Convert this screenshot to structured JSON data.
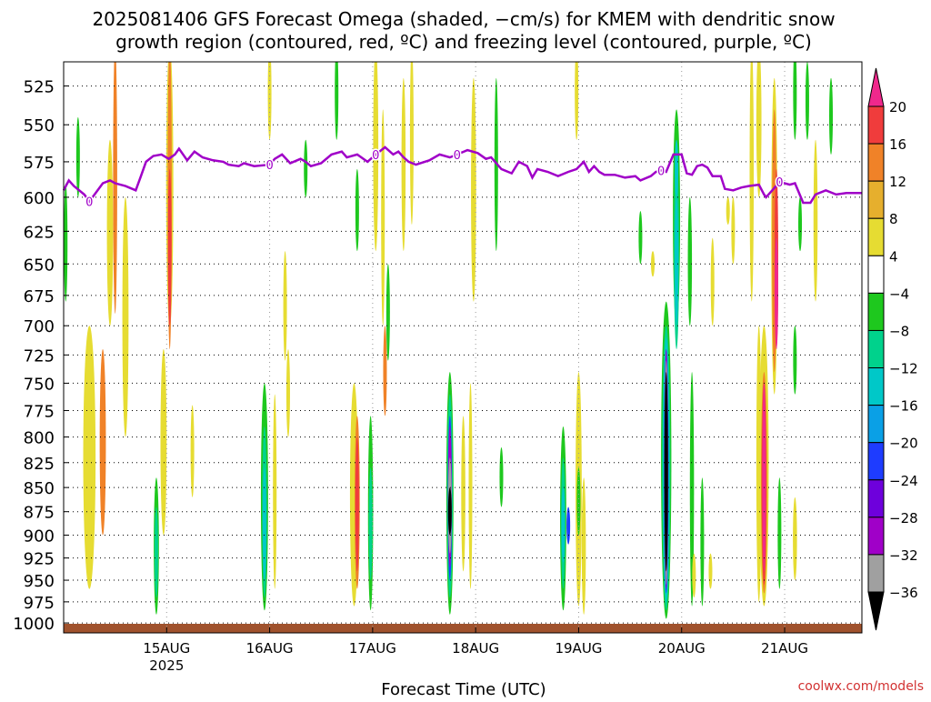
{
  "chart_data": {
    "type": "heatmap",
    "title_line1": "2025081406 GFS Forecast Omega (shaded, −cm/s) for KMEM with dendritic snow",
    "title_line2": "growth region (contoured, red, ºC) and freezing level (contoured, purple, ºC)",
    "xlabel": "Forecast Time (UTC)",
    "watermark": "coolwx.com/models",
    "x_ticks": [
      {
        "label": "15AUG",
        "sub": "2025",
        "day": 15
      },
      {
        "label": "16AUG",
        "sub": "",
        "day": 16
      },
      {
        "label": "17AUG",
        "sub": "",
        "day": 17
      },
      {
        "label": "18AUG",
        "sub": "",
        "day": 18
      },
      {
        "label": "19AUG",
        "sub": "",
        "day": 19
      },
      {
        "label": "20AUG",
        "sub": "",
        "day": 20
      },
      {
        "label": "21AUG",
        "sub": "",
        "day": 21
      }
    ],
    "x_range_days": [
      14.0,
      21.75
    ],
    "y_ticks": [
      525,
      550,
      575,
      600,
      625,
      650,
      675,
      700,
      725,
      750,
      775,
      800,
      825,
      850,
      875,
      900,
      925,
      950,
      975,
      1000
    ],
    "y_range_hpa": [
      510,
      1012
    ],
    "y_scale": "log-pressure",
    "grid": true,
    "colorbar": {
      "labels": [
        "20",
        "16",
        "12",
        "8",
        "4",
        "−4",
        "−8",
        "−12",
        "−16",
        "−20",
        "−24",
        "−28",
        "−32",
        "−36"
      ],
      "colors": [
        "#f0288c",
        "#f03c3c",
        "#f08228",
        "#e6af2d",
        "#e6dc32",
        "#ffffff",
        "#1ec81e",
        "#00d28c",
        "#00c8c8",
        "#0aa0e6",
        "#1e3cff",
        "#6e00dc",
        "#a000c8",
        "#a0a0a0",
        "#000000"
      ]
    },
    "omega_blobs": [
      {
        "day": 14.02,
        "p_top": 590,
        "p_bot": 680,
        "w": 0.03,
        "level": "green"
      },
      {
        "day": 14.14,
        "p_top": 545,
        "p_bot": 600,
        "w": 0.03,
        "level": "green"
      },
      {
        "day": 14.5,
        "p_top": 500,
        "p_bot": 690,
        "w": 0.04,
        "level": "orange"
      },
      {
        "day": 14.45,
        "p_top": 560,
        "p_bot": 700,
        "w": 0.06,
        "level": "yellow"
      },
      {
        "day": 14.25,
        "p_top": 700,
        "p_bot": 960,
        "w": 0.12,
        "level": "yellow"
      },
      {
        "day": 14.38,
        "p_top": 720,
        "p_bot": 900,
        "w": 0.06,
        "level": "orange"
      },
      {
        "day": 14.6,
        "p_top": 600,
        "p_bot": 800,
        "w": 0.06,
        "level": "yellow"
      },
      {
        "day": 15.03,
        "p_top": 500,
        "p_bot": 700,
        "w": 0.07,
        "level": "yellow"
      },
      {
        "day": 15.03,
        "p_top": 500,
        "p_bot": 720,
        "w": 0.04,
        "level": "orange"
      },
      {
        "day": 15.03,
        "p_top": 580,
        "p_bot": 700,
        "w": 0.02,
        "level": "red"
      },
      {
        "day": 14.97,
        "p_top": 720,
        "p_bot": 900,
        "w": 0.06,
        "level": "yellow"
      },
      {
        "day": 14.9,
        "p_top": 840,
        "p_bot": 990,
        "w": 0.05,
        "level": "green"
      },
      {
        "day": 14.9,
        "p_top": 870,
        "p_bot": 970,
        "w": 0.025,
        "level": "teal"
      },
      {
        "day": 15.25,
        "p_top": 770,
        "p_bot": 860,
        "w": 0.03,
        "level": "yellow"
      },
      {
        "day": 16.0,
        "p_top": 500,
        "p_bot": 560,
        "w": 0.025,
        "level": "yellow"
      },
      {
        "day": 15.95,
        "p_top": 750,
        "p_bot": 985,
        "w": 0.07,
        "level": "green"
      },
      {
        "day": 15.95,
        "p_top": 790,
        "p_bot": 970,
        "w": 0.045,
        "level": "teal"
      },
      {
        "day": 15.95,
        "p_top": 830,
        "p_bot": 950,
        "w": 0.025,
        "level": "cyan"
      },
      {
        "day": 16.05,
        "p_top": 760,
        "p_bot": 960,
        "w": 0.03,
        "level": "yellow"
      },
      {
        "day": 16.15,
        "p_top": 640,
        "p_bot": 730,
        "w": 0.03,
        "level": "yellow"
      },
      {
        "day": 16.18,
        "p_top": 720,
        "p_bot": 800,
        "w": 0.02,
        "level": "yellow"
      },
      {
        "day": 16.35,
        "p_top": 560,
        "p_bot": 600,
        "w": 0.03,
        "level": "green"
      },
      {
        "day": 16.65,
        "p_top": 500,
        "p_bot": 560,
        "w": 0.02,
        "level": "green"
      },
      {
        "day": 16.85,
        "p_top": 580,
        "p_bot": 640,
        "w": 0.025,
        "level": "green"
      },
      {
        "day": 16.82,
        "p_top": 750,
        "p_bot": 980,
        "w": 0.08,
        "level": "yellow"
      },
      {
        "day": 16.85,
        "p_top": 780,
        "p_bot": 960,
        "w": 0.05,
        "level": "orange"
      },
      {
        "day": 16.85,
        "p_top": 800,
        "p_bot": 940,
        "w": 0.025,
        "level": "red"
      },
      {
        "day": 16.98,
        "p_top": 780,
        "p_bot": 985,
        "w": 0.05,
        "level": "green"
      },
      {
        "day": 16.98,
        "p_top": 830,
        "p_bot": 950,
        "w": 0.025,
        "level": "teal"
      },
      {
        "day": 17.03,
        "p_top": 500,
        "p_bot": 640,
        "w": 0.05,
        "level": "yellow"
      },
      {
        "day": 17.1,
        "p_top": 540,
        "p_bot": 700,
        "w": 0.03,
        "level": "yellow"
      },
      {
        "day": 17.12,
        "p_top": 700,
        "p_bot": 780,
        "w": 0.025,
        "level": "orange"
      },
      {
        "day": 17.15,
        "p_top": 650,
        "p_bot": 730,
        "w": 0.03,
        "level": "green"
      },
      {
        "day": 17.3,
        "p_top": 520,
        "p_bot": 640,
        "w": 0.04,
        "level": "yellow"
      },
      {
        "day": 17.38,
        "p_top": 500,
        "p_bot": 620,
        "w": 0.03,
        "level": "yellow"
      },
      {
        "day": 17.75,
        "p_top": 740,
        "p_bot": 990,
        "w": 0.07,
        "level": "green"
      },
      {
        "day": 17.75,
        "p_top": 760,
        "p_bot": 970,
        "w": 0.055,
        "level": "teal"
      },
      {
        "day": 17.75,
        "p_top": 780,
        "p_bot": 950,
        "w": 0.04,
        "level": "blue"
      },
      {
        "day": 17.75,
        "p_top": 790,
        "p_bot": 935,
        "w": 0.03,
        "level": "purple"
      },
      {
        "day": 17.75,
        "p_top": 820,
        "p_bot": 920,
        "w": 0.018,
        "level": "grey"
      },
      {
        "day": 17.75,
        "p_top": 850,
        "p_bot": 900,
        "w": 0.008,
        "level": "black"
      },
      {
        "day": 17.88,
        "p_top": 780,
        "p_bot": 940,
        "w": 0.04,
        "level": "yellow"
      },
      {
        "day": 17.95,
        "p_top": 750,
        "p_bot": 960,
        "w": 0.03,
        "level": "yellow"
      },
      {
        "day": 17.98,
        "p_top": 520,
        "p_bot": 680,
        "w": 0.05,
        "level": "yellow"
      },
      {
        "day": 18.2,
        "p_top": 520,
        "p_bot": 640,
        "w": 0.03,
        "level": "green"
      },
      {
        "day": 18.25,
        "p_top": 810,
        "p_bot": 870,
        "w": 0.02,
        "level": "green"
      },
      {
        "day": 18.85,
        "p_top": 790,
        "p_bot": 985,
        "w": 0.06,
        "level": "green"
      },
      {
        "day": 18.85,
        "p_top": 820,
        "p_bot": 960,
        "w": 0.04,
        "level": "teal"
      },
      {
        "day": 18.85,
        "p_top": 850,
        "p_bot": 930,
        "w": 0.02,
        "level": "cyan"
      },
      {
        "day": 18.9,
        "p_top": 870,
        "p_bot": 910,
        "w": 0.01,
        "level": "blue"
      },
      {
        "day": 19.0,
        "p_top": 740,
        "p_bot": 980,
        "w": 0.06,
        "level": "yellow"
      },
      {
        "day": 19.05,
        "p_top": 840,
        "p_bot": 990,
        "w": 0.04,
        "level": "yellow"
      },
      {
        "day": 18.98,
        "p_top": 500,
        "p_bot": 560,
        "w": 0.02,
        "level": "yellow"
      },
      {
        "day": 19.0,
        "p_top": 830,
        "p_bot": 900,
        "w": 0.02,
        "level": "green"
      },
      {
        "day": 19.6,
        "p_top": 610,
        "p_bot": 650,
        "w": 0.025,
        "level": "green"
      },
      {
        "day": 19.72,
        "p_top": 640,
        "p_bot": 660,
        "w": 0.03,
        "level": "yellow"
      },
      {
        "day": 19.85,
        "p_top": 680,
        "p_bot": 995,
        "w": 0.1,
        "level": "green"
      },
      {
        "day": 19.85,
        "p_top": 700,
        "p_bot": 985,
        "w": 0.08,
        "level": "teal"
      },
      {
        "day": 19.85,
        "p_top": 710,
        "p_bot": 975,
        "w": 0.06,
        "level": "cyan"
      },
      {
        "day": 19.85,
        "p_top": 720,
        "p_bot": 965,
        "w": 0.045,
        "level": "blue"
      },
      {
        "day": 19.85,
        "p_top": 720,
        "p_bot": 960,
        "w": 0.035,
        "level": "purple"
      },
      {
        "day": 19.85,
        "p_top": 730,
        "p_bot": 955,
        "w": 0.025,
        "level": "grey"
      },
      {
        "day": 19.85,
        "p_top": 740,
        "p_bot": 940,
        "w": 0.02,
        "level": "black"
      },
      {
        "day": 19.95,
        "p_top": 540,
        "p_bot": 700,
        "w": 0.07,
        "level": "green"
      },
      {
        "day": 19.95,
        "p_top": 570,
        "p_bot": 720,
        "w": 0.05,
        "level": "teal"
      },
      {
        "day": 19.95,
        "p_top": 600,
        "p_bot": 700,
        "w": 0.025,
        "level": "cyan"
      },
      {
        "day": 19.95,
        "p_top": 560,
        "p_bot": 600,
        "w": 0.025,
        "level": "cyan"
      },
      {
        "day": 20.08,
        "p_top": 600,
        "p_bot": 700,
        "w": 0.04,
        "level": "green"
      },
      {
        "day": 20.1,
        "p_top": 740,
        "p_bot": 980,
        "w": 0.04,
        "level": "green"
      },
      {
        "day": 20.2,
        "p_top": 840,
        "p_bot": 980,
        "w": 0.035,
        "level": "green"
      },
      {
        "day": 20.12,
        "p_top": 920,
        "p_bot": 970,
        "w": 0.025,
        "level": "yellow"
      },
      {
        "day": 20.28,
        "p_top": 920,
        "p_bot": 960,
        "w": 0.02,
        "level": "yellow"
      },
      {
        "day": 20.3,
        "p_top": 630,
        "p_bot": 700,
        "w": 0.03,
        "level": "yellow"
      },
      {
        "day": 20.45,
        "p_top": 600,
        "p_bot": 620,
        "w": 0.03,
        "level": "yellow"
      },
      {
        "day": 20.5,
        "p_top": 600,
        "p_bot": 650,
        "w": 0.03,
        "level": "yellow"
      },
      {
        "day": 20.68,
        "p_top": 500,
        "p_bot": 680,
        "w": 0.04,
        "level": "yellow"
      },
      {
        "day": 20.75,
        "p_top": 500,
        "p_bot": 600,
        "w": 0.05,
        "level": "yellow"
      },
      {
        "day": 20.75,
        "p_top": 700,
        "p_bot": 975,
        "w": 0.05,
        "level": "yellow"
      },
      {
        "day": 20.8,
        "p_top": 700,
        "p_bot": 980,
        "w": 0.09,
        "level": "yellow"
      },
      {
        "day": 20.8,
        "p_top": 740,
        "p_bot": 965,
        "w": 0.06,
        "level": "orange"
      },
      {
        "day": 20.8,
        "p_top": 750,
        "p_bot": 955,
        "w": 0.045,
        "level": "red"
      },
      {
        "day": 20.8,
        "p_top": 750,
        "p_bot": 940,
        "w": 0.035,
        "level": "pink"
      },
      {
        "day": 20.9,
        "p_top": 520,
        "p_bot": 760,
        "w": 0.06,
        "level": "yellow"
      },
      {
        "day": 20.9,
        "p_top": 540,
        "p_bot": 740,
        "w": 0.045,
        "level": "orange"
      },
      {
        "day": 20.92,
        "p_top": 580,
        "p_bot": 720,
        "w": 0.03,
        "level": "red"
      },
      {
        "day": 20.92,
        "p_top": 630,
        "p_bot": 720,
        "w": 0.02,
        "level": "pink"
      },
      {
        "day": 20.95,
        "p_top": 840,
        "p_bot": 960,
        "w": 0.03,
        "level": "green"
      },
      {
        "day": 21.1,
        "p_top": 860,
        "p_bot": 950,
        "w": 0.04,
        "level": "yellow"
      },
      {
        "day": 21.1,
        "p_top": 700,
        "p_bot": 760,
        "w": 0.03,
        "level": "green"
      },
      {
        "day": 21.1,
        "p_top": 500,
        "p_bot": 560,
        "w": 0.02,
        "level": "green"
      },
      {
        "day": 21.15,
        "p_top": 600,
        "p_bot": 640,
        "w": 0.03,
        "level": "green"
      },
      {
        "day": 21.22,
        "p_top": 510,
        "p_bot": 560,
        "w": 0.02,
        "level": "green"
      },
      {
        "day": 21.3,
        "p_top": 560,
        "p_bot": 680,
        "w": 0.04,
        "level": "yellow"
      },
      {
        "day": 21.45,
        "p_top": 520,
        "p_bot": 570,
        "w": 0.03,
        "level": "green"
      }
    ],
    "freezing_level_hpa": [
      [
        14.0,
        595
      ],
      [
        14.05,
        588
      ],
      [
        14.1,
        592
      ],
      [
        14.2,
        598
      ],
      [
        14.25,
        603
      ],
      [
        14.3,
        598
      ],
      [
        14.38,
        590
      ],
      [
        14.45,
        588
      ],
      [
        14.5,
        590
      ],
      [
        14.6,
        592
      ],
      [
        14.7,
        595
      ],
      [
        14.75,
        585
      ],
      [
        14.8,
        575
      ],
      [
        14.87,
        571
      ],
      [
        14.95,
        570
      ],
      [
        15.02,
        573
      ],
      [
        15.08,
        570
      ],
      [
        15.12,
        566
      ],
      [
        15.2,
        574
      ],
      [
        15.27,
        568
      ],
      [
        15.35,
        572
      ],
      [
        15.45,
        574
      ],
      [
        15.55,
        575
      ],
      [
        15.6,
        577
      ],
      [
        15.7,
        578
      ],
      [
        15.75,
        576
      ],
      [
        15.85,
        578
      ],
      [
        16.0,
        577
      ],
      [
        16.05,
        573
      ],
      [
        16.12,
        570
      ],
      [
        16.2,
        576
      ],
      [
        16.3,
        573
      ],
      [
        16.35,
        575
      ],
      [
        16.4,
        578
      ],
      [
        16.5,
        576
      ],
      [
        16.6,
        570
      ],
      [
        16.7,
        568
      ],
      [
        16.75,
        572
      ],
      [
        16.85,
        570
      ],
      [
        16.95,
        575
      ],
      [
        17.03,
        570
      ],
      [
        17.12,
        565
      ],
      [
        17.2,
        570
      ],
      [
        17.25,
        568
      ],
      [
        17.3,
        572
      ],
      [
        17.35,
        575
      ],
      [
        17.42,
        577
      ],
      [
        17.55,
        574
      ],
      [
        17.65,
        570
      ],
      [
        17.75,
        572
      ],
      [
        17.82,
        570
      ],
      [
        17.92,
        567
      ],
      [
        18.02,
        569
      ],
      [
        18.1,
        573
      ],
      [
        18.15,
        572
      ],
      [
        18.25,
        580
      ],
      [
        18.35,
        583
      ],
      [
        18.42,
        575
      ],
      [
        18.5,
        578
      ],
      [
        18.55,
        586
      ],
      [
        18.6,
        580
      ],
      [
        18.7,
        582
      ],
      [
        18.8,
        585
      ],
      [
        18.9,
        582
      ],
      [
        18.98,
        580
      ],
      [
        19.05,
        575
      ],
      [
        19.1,
        582
      ],
      [
        19.15,
        578
      ],
      [
        19.2,
        582
      ],
      [
        19.25,
        584
      ],
      [
        19.35,
        584
      ],
      [
        19.45,
        586
      ],
      [
        19.55,
        585
      ],
      [
        19.6,
        588
      ],
      [
        19.7,
        585
      ],
      [
        19.75,
        582
      ],
      [
        19.8,
        581
      ],
      [
        19.85,
        582
      ],
      [
        19.92,
        570
      ],
      [
        20.0,
        570
      ],
      [
        20.05,
        583
      ],
      [
        20.1,
        584
      ],
      [
        20.15,
        578
      ],
      [
        20.2,
        577
      ],
      [
        20.25,
        579
      ],
      [
        20.3,
        585
      ],
      [
        20.38,
        585
      ],
      [
        20.42,
        594
      ],
      [
        20.5,
        595
      ],
      [
        20.58,
        593
      ],
      [
        20.65,
        592
      ],
      [
        20.75,
        591
      ],
      [
        20.8,
        598
      ],
      [
        20.82,
        600
      ],
      [
        20.88,
        595
      ],
      [
        20.95,
        589
      ],
      [
        21.05,
        591
      ],
      [
        21.1,
        590
      ],
      [
        21.18,
        604
      ],
      [
        21.25,
        604
      ],
      [
        21.3,
        598
      ],
      [
        21.4,
        595
      ],
      [
        21.5,
        598
      ],
      [
        21.6,
        597
      ],
      [
        21.75,
        597
      ]
    ],
    "freezing_labels": [
      {
        "day": 14.25,
        "hpa": 603,
        "label": "0"
      },
      {
        "day": 16.0,
        "hpa": 577,
        "label": "0"
      },
      {
        "day": 17.03,
        "hpa": 570,
        "label": "0"
      },
      {
        "day": 17.82,
        "hpa": 570,
        "label": "0"
      },
      {
        "day": 19.8,
        "hpa": 581,
        "label": "0"
      },
      {
        "day": 20.95,
        "hpa": 589,
        "label": "0"
      }
    ]
  }
}
